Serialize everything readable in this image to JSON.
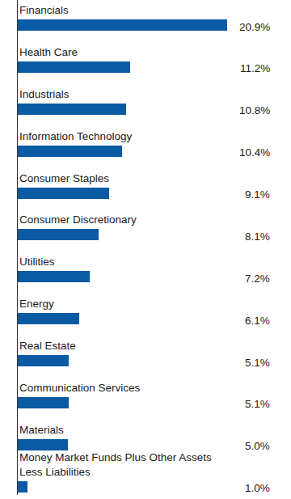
{
  "chart_data": {
    "type": "bar",
    "orientation": "horizontal",
    "categories": [
      "Financials",
      "Health Care",
      "Industrials",
      "Information Technology",
      "Consumer Staples",
      "Consumer Discretionary",
      "Utilities",
      "Energy",
      "Real Estate",
      "Communication Services",
      "Materials",
      "Money Market Funds Plus Other Assets Less Liabilities"
    ],
    "values": [
      20.9,
      11.2,
      10.8,
      10.4,
      9.1,
      8.1,
      7.2,
      6.1,
      5.1,
      5.1,
      5.0,
      1.0
    ],
    "value_labels": [
      "20.9%",
      "11.2%",
      "10.8%",
      "10.4%",
      "9.1%",
      "8.1%",
      "7.2%",
      "6.1%",
      "5.1%",
      "5.1%",
      "5.0%",
      "1.0%"
    ],
    "color": "#0b5aa4",
    "xlim": [
      0,
      25
    ],
    "data_labels": true,
    "tick_labels": false,
    "grid": false
  }
}
